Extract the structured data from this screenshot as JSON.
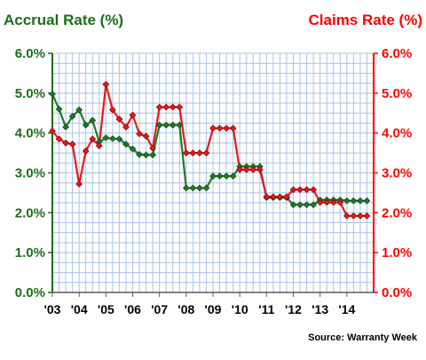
{
  "chart_data": {
    "type": "line",
    "left_title": "Accrual Rate (%)",
    "right_title": "Claims Rate (%)",
    "source": "Source: Warranty Week",
    "x_labels": [
      "'03",
      "'04",
      "'05",
      "'06",
      "'07",
      "'08",
      "'09",
      "'10",
      "'11",
      "'12",
      "'13",
      "'14"
    ],
    "x_range": [
      2003,
      2015
    ],
    "y_range": [
      0,
      6
    ],
    "y_ticks": [
      "0.0%",
      "1.0%",
      "2.0%",
      "3.0%",
      "4.0%",
      "5.0%",
      "6.0%"
    ],
    "grid": true,
    "left_axis_color": "#1a6e1a",
    "right_axis_color": "#ff0000",
    "series": [
      {
        "name": "Accrual Rate (%)",
        "color": "#1f7a2a",
        "axis": "left",
        "values": [
          [
            2003.0,
            4.98
          ],
          [
            2003.25,
            4.6
          ],
          [
            2003.5,
            4.15
          ],
          [
            2003.75,
            4.42
          ],
          [
            2004.0,
            4.58
          ],
          [
            2004.25,
            4.2
          ],
          [
            2004.5,
            4.32
          ],
          [
            2004.75,
            3.78
          ],
          [
            2005.0,
            3.88
          ],
          [
            2005.25,
            3.86
          ],
          [
            2005.5,
            3.85
          ],
          [
            2005.75,
            3.72
          ],
          [
            2006.0,
            3.6
          ],
          [
            2006.25,
            3.46
          ],
          [
            2006.5,
            3.45
          ],
          [
            2006.75,
            3.45
          ],
          [
            2007.0,
            4.2
          ],
          [
            2007.25,
            4.2
          ],
          [
            2007.5,
            4.2
          ],
          [
            2007.75,
            4.2
          ],
          [
            2008.0,
            2.62
          ],
          [
            2008.25,
            2.62
          ],
          [
            2008.5,
            2.62
          ],
          [
            2008.75,
            2.62
          ],
          [
            2009.0,
            2.92
          ],
          [
            2009.25,
            2.92
          ],
          [
            2009.5,
            2.92
          ],
          [
            2009.75,
            2.92
          ],
          [
            2010.0,
            3.16
          ],
          [
            2010.25,
            3.16
          ],
          [
            2010.5,
            3.16
          ],
          [
            2010.75,
            3.16
          ],
          [
            2011.0,
            2.38
          ],
          [
            2011.25,
            2.38
          ],
          [
            2011.5,
            2.38
          ],
          [
            2011.75,
            2.38
          ],
          [
            2012.0,
            2.2
          ],
          [
            2012.25,
            2.2
          ],
          [
            2012.5,
            2.2
          ],
          [
            2012.75,
            2.2
          ],
          [
            2013.0,
            2.32
          ],
          [
            2013.25,
            2.32
          ],
          [
            2013.5,
            2.32
          ],
          [
            2013.75,
            2.32
          ],
          [
            2014.0,
            2.3
          ],
          [
            2014.25,
            2.3
          ],
          [
            2014.5,
            2.3
          ],
          [
            2014.75,
            2.3
          ]
        ]
      },
      {
        "name": "Claims Rate (%)",
        "color": "#e8191c",
        "axis": "right",
        "values": [
          [
            2003.0,
            4.05
          ],
          [
            2003.25,
            3.85
          ],
          [
            2003.5,
            3.75
          ],
          [
            2003.75,
            3.72
          ],
          [
            2004.0,
            2.72
          ],
          [
            2004.25,
            3.55
          ],
          [
            2004.5,
            3.85
          ],
          [
            2004.75,
            3.68
          ],
          [
            2005.0,
            5.22
          ],
          [
            2005.25,
            4.58
          ],
          [
            2005.5,
            4.35
          ],
          [
            2005.75,
            4.15
          ],
          [
            2006.0,
            4.45
          ],
          [
            2006.25,
            3.98
          ],
          [
            2006.5,
            3.92
          ],
          [
            2006.75,
            3.62
          ],
          [
            2007.0,
            4.65
          ],
          [
            2007.25,
            4.65
          ],
          [
            2007.5,
            4.65
          ],
          [
            2007.75,
            4.65
          ],
          [
            2008.0,
            3.5
          ],
          [
            2008.25,
            3.5
          ],
          [
            2008.5,
            3.5
          ],
          [
            2008.75,
            3.5
          ],
          [
            2009.0,
            4.12
          ],
          [
            2009.25,
            4.12
          ],
          [
            2009.5,
            4.12
          ],
          [
            2009.75,
            4.12
          ],
          [
            2010.0,
            3.08
          ],
          [
            2010.25,
            3.08
          ],
          [
            2010.5,
            3.08
          ],
          [
            2010.75,
            3.08
          ],
          [
            2011.0,
            2.4
          ],
          [
            2011.25,
            2.4
          ],
          [
            2011.5,
            2.4
          ],
          [
            2011.75,
            2.4
          ],
          [
            2012.0,
            2.58
          ],
          [
            2012.25,
            2.58
          ],
          [
            2012.5,
            2.58
          ],
          [
            2012.75,
            2.58
          ],
          [
            2013.0,
            2.26
          ],
          [
            2013.25,
            2.26
          ],
          [
            2013.5,
            2.26
          ],
          [
            2013.75,
            2.26
          ],
          [
            2014.0,
            1.92
          ],
          [
            2014.25,
            1.92
          ],
          [
            2014.5,
            1.92
          ],
          [
            2014.75,
            1.92
          ]
        ]
      }
    ]
  }
}
